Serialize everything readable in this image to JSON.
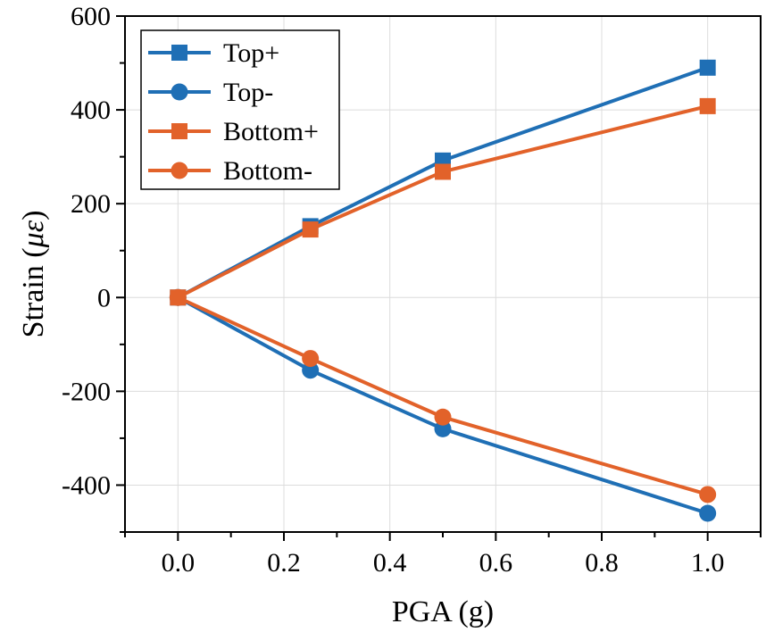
{
  "chart_data": {
    "type": "line",
    "title": "",
    "xlabel": "PGA (g)",
    "ylabel_prefix": "Strain (",
    "ylabel_unit": "με",
    "ylabel_suffix": ")",
    "xlim": [
      -0.1,
      1.1
    ],
    "ylim": [
      -500,
      600
    ],
    "x_ticks": [
      "0.0",
      "0.2",
      "0.4",
      "0.6",
      "0.8",
      "1.0"
    ],
    "y_ticks": [
      "-400",
      "-200",
      "0",
      "200",
      "400",
      "600"
    ],
    "grid": true,
    "legend_position": "top-left",
    "x": [
      0,
      0.25,
      0.5,
      1.0
    ],
    "series": [
      {
        "name": "Top+",
        "values": [
          0,
          152,
          292,
          490
        ],
        "color": "#1f6fb5",
        "marker": "square"
      },
      {
        "name": "Top-",
        "values": [
          0,
          -155,
          -280,
          -460
        ],
        "color": "#1f6fb5",
        "marker": "circle"
      },
      {
        "name": "Bottom+",
        "values": [
          0,
          145,
          268,
          408
        ],
        "color": "#e2622a",
        "marker": "square"
      },
      {
        "name": "Bottom-",
        "values": [
          0,
          -130,
          -255,
          -420
        ],
        "color": "#e2622a",
        "marker": "circle"
      }
    ]
  }
}
